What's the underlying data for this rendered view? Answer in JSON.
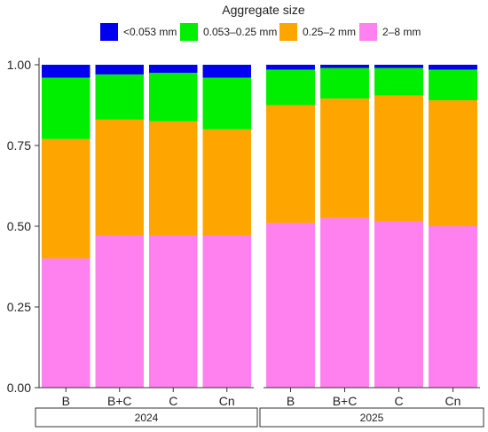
{
  "chart_data": {
    "type": "bar",
    "stacked": true,
    "legend": {
      "title": "Aggregate size",
      "placement": "top"
    },
    "series": [
      {
        "name": "<0.053 mm",
        "color": "#0000EE"
      },
      {
        "name": "0.053–0.25 mm",
        "color": "#00EE00"
      },
      {
        "name": "0.25–2 mm",
        "color": "#FFA500"
      },
      {
        "name": "2–8 mm",
        "color": "#FF80EE"
      }
    ],
    "ylim": [
      0,
      1
    ],
    "yticks": [
      "0.00",
      "0.25",
      "0.50",
      "0.75",
      "1.00"
    ],
    "grid": false,
    "panels": [
      {
        "label": "2024",
        "categories": [
          "B",
          "B+C",
          "C",
          "Cn"
        ],
        "values": {
          "2–8 mm": [
            0.4,
            0.47,
            0.47,
            0.47
          ],
          "0.25–2 mm": [
            0.37,
            0.36,
            0.355,
            0.33
          ],
          "0.053–0.25 mm": [
            0.19,
            0.14,
            0.15,
            0.16
          ],
          "<0.053 mm": [
            0.04,
            0.03,
            0.025,
            0.04
          ]
        }
      },
      {
        "label": "2025",
        "categories": [
          "B",
          "B+C",
          "C",
          "Cn"
        ],
        "values": {
          "2–8 mm": [
            0.51,
            0.525,
            0.515,
            0.5
          ],
          "0.25–2 mm": [
            0.365,
            0.37,
            0.39,
            0.39
          ],
          "0.053–0.25 mm": [
            0.11,
            0.095,
            0.085,
            0.095
          ],
          "<0.053 mm": [
            0.015,
            0.01,
            0.01,
            0.015
          ]
        }
      }
    ]
  }
}
